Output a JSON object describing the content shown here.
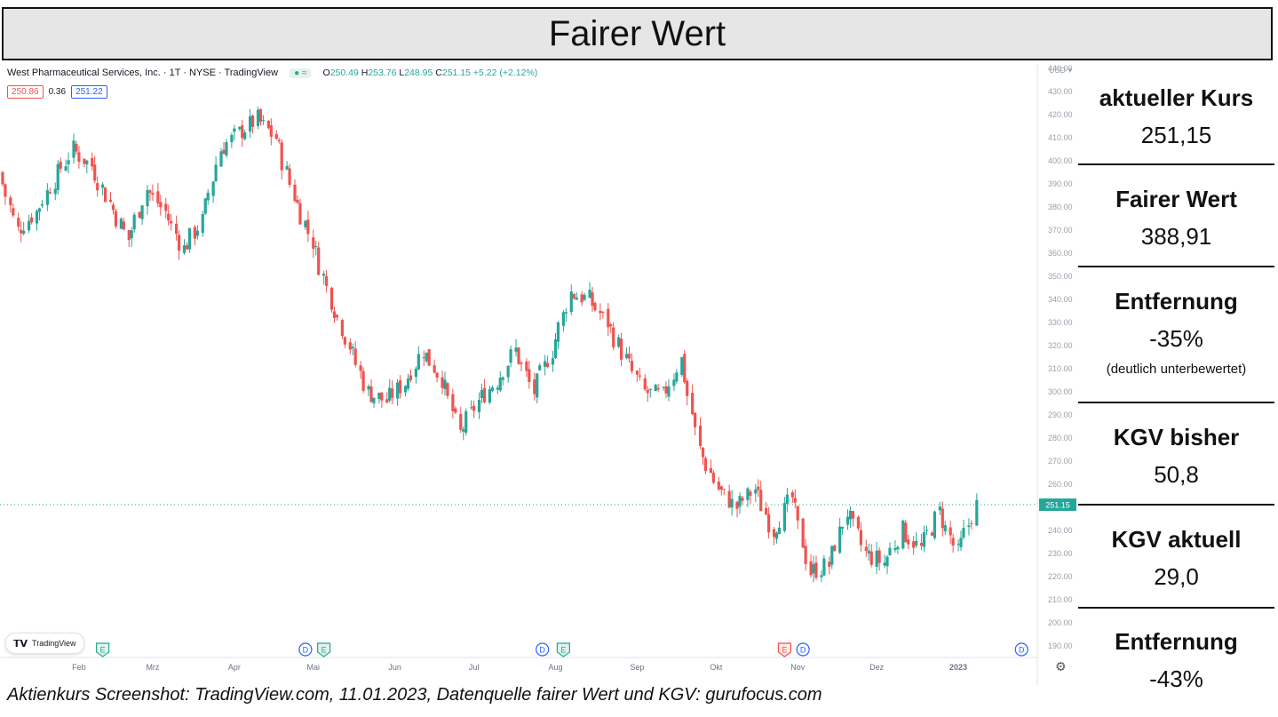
{
  "title": "Fairer Wert",
  "chart_header": {
    "symbol": "West Pharmaceutical Services, Inc. · 1T · NYSE · TradingView",
    "status_icons": [
      "●",
      "≈"
    ],
    "open_label": "O",
    "open": "250.49",
    "high_label": "H",
    "high": "253.76",
    "low_label": "L",
    "low": "248.95",
    "close_label": "C",
    "close": "251.15",
    "change": "+5.22 (+2.12%)"
  },
  "bid_ask": {
    "bid": "250.86",
    "spread": "0.36",
    "ask": "251.22"
  },
  "currency": "USD ▾",
  "tv_logo_text": "TradingView",
  "chart_data": {
    "type": "candlestick",
    "y_ticks": [
      "440.00",
      "430.00",
      "420.00",
      "410.00",
      "400.00",
      "390.00",
      "380.00",
      "370.00",
      "360.00",
      "350.00",
      "340.00",
      "330.00",
      "320.00",
      "310.00",
      "300.00",
      "290.00",
      "280.00",
      "270.00",
      "260.00",
      "250.00",
      "240.00",
      "230.00",
      "220.00",
      "210.00",
      "200.00",
      "190.00"
    ],
    "ylim": [
      185,
      442
    ],
    "x_ticks": [
      "Feb",
      "Mrz",
      "Apr",
      "Mai",
      "Jun",
      "Jul",
      "Aug",
      "Sep",
      "Okt",
      "Nov",
      "Dez",
      "2023"
    ],
    "current_price_label": "251.15",
    "current_price": 251.15,
    "close_path": [
      {
        "x": "2022-01-03",
        "y": 395
      },
      {
        "x": "2022-01-10",
        "y": 370
      },
      {
        "x": "2022-01-17",
        "y": 378
      },
      {
        "x": "2022-01-24",
        "y": 392
      },
      {
        "x": "2022-01-31",
        "y": 405
      },
      {
        "x": "2022-02-07",
        "y": 398
      },
      {
        "x": "2022-02-14",
        "y": 382
      },
      {
        "x": "2022-02-21",
        "y": 366
      },
      {
        "x": "2022-02-28",
        "y": 388
      },
      {
        "x": "2022-03-07",
        "y": 378
      },
      {
        "x": "2022-03-14",
        "y": 362
      },
      {
        "x": "2022-03-21",
        "y": 374
      },
      {
        "x": "2022-03-28",
        "y": 405
      },
      {
        "x": "2022-04-04",
        "y": 412
      },
      {
        "x": "2022-04-11",
        "y": 418
      },
      {
        "x": "2022-04-18",
        "y": 410
      },
      {
        "x": "2022-04-25",
        "y": 385
      },
      {
        "x": "2022-05-02",
        "y": 365
      },
      {
        "x": "2022-05-09",
        "y": 340
      },
      {
        "x": "2022-05-16",
        "y": 320
      },
      {
        "x": "2022-05-23",
        "y": 300
      },
      {
        "x": "2022-05-30",
        "y": 296
      },
      {
        "x": "2022-06-06",
        "y": 304
      },
      {
        "x": "2022-06-13",
        "y": 318
      },
      {
        "x": "2022-06-20",
        "y": 306
      },
      {
        "x": "2022-06-27",
        "y": 282
      },
      {
        "x": "2022-07-04",
        "y": 296
      },
      {
        "x": "2022-07-11",
        "y": 305
      },
      {
        "x": "2022-07-18",
        "y": 318
      },
      {
        "x": "2022-07-25",
        "y": 300
      },
      {
        "x": "2022-08-01",
        "y": 318
      },
      {
        "x": "2022-08-08",
        "y": 343
      },
      {
        "x": "2022-08-15",
        "y": 340
      },
      {
        "x": "2022-08-22",
        "y": 330
      },
      {
        "x": "2022-08-29",
        "y": 314
      },
      {
        "x": "2022-09-05",
        "y": 300
      },
      {
        "x": "2022-09-12",
        "y": 298
      },
      {
        "x": "2022-09-19",
        "y": 314
      },
      {
        "x": "2022-09-26",
        "y": 275
      },
      {
        "x": "2022-10-03",
        "y": 258
      },
      {
        "x": "2022-10-10",
        "y": 250
      },
      {
        "x": "2022-10-17",
        "y": 258
      },
      {
        "x": "2022-10-24",
        "y": 240
      },
      {
        "x": "2022-10-31",
        "y": 254
      },
      {
        "x": "2022-11-07",
        "y": 222
      },
      {
        "x": "2022-11-14",
        "y": 225
      },
      {
        "x": "2022-11-21",
        "y": 248
      },
      {
        "x": "2022-11-28",
        "y": 230
      },
      {
        "x": "2022-12-05",
        "y": 226
      },
      {
        "x": "2022-12-12",
        "y": 240
      },
      {
        "x": "2022-12-19",
        "y": 232
      },
      {
        "x": "2022-12-26",
        "y": 248
      },
      {
        "x": "2023-01-02",
        "y": 230
      },
      {
        "x": "2023-01-09",
        "y": 251
      }
    ],
    "event_markers": [
      {
        "label": "E",
        "type": "earnings",
        "x": "2022-02-10"
      },
      {
        "label": "D",
        "type": "dividend",
        "x": "2022-04-28"
      },
      {
        "label": "E",
        "type": "earnings",
        "x": "2022-05-05"
      },
      {
        "label": "D",
        "type": "dividend",
        "x": "2022-07-27"
      },
      {
        "label": "E",
        "type": "earnings",
        "x": "2022-08-04"
      },
      {
        "label": "E",
        "type": "earnings-red",
        "x": "2022-10-27"
      },
      {
        "label": "D",
        "type": "dividend",
        "x": "2022-11-03"
      },
      {
        "label": "D",
        "type": "dividend",
        "x": "2023-01-25"
      }
    ]
  },
  "metrics": [
    {
      "label": "aktueller Kurs",
      "value": "251,15"
    },
    {
      "label": "Fairer Wert",
      "value": "388,91"
    },
    {
      "label": "Entfernung",
      "value": "-35%",
      "note": "(deutlich unterbewertet)"
    },
    {
      "label": "KGV bisher",
      "value": "50,8"
    },
    {
      "label": "KGV aktuell",
      "value": "29,0"
    },
    {
      "label": "Entfernung",
      "value": "-43%"
    }
  ],
  "caption": "Aktienkurs Screenshot: TradingView.com, 11.01.2023, Datenquelle fairer Wert und KGV: gurufocus.com",
  "colors": {
    "up": "#26a69a",
    "down": "#ef5350",
    "price_tag": "#26a69a",
    "dividend": "#2962ff",
    "earnings": "#26a69a"
  }
}
